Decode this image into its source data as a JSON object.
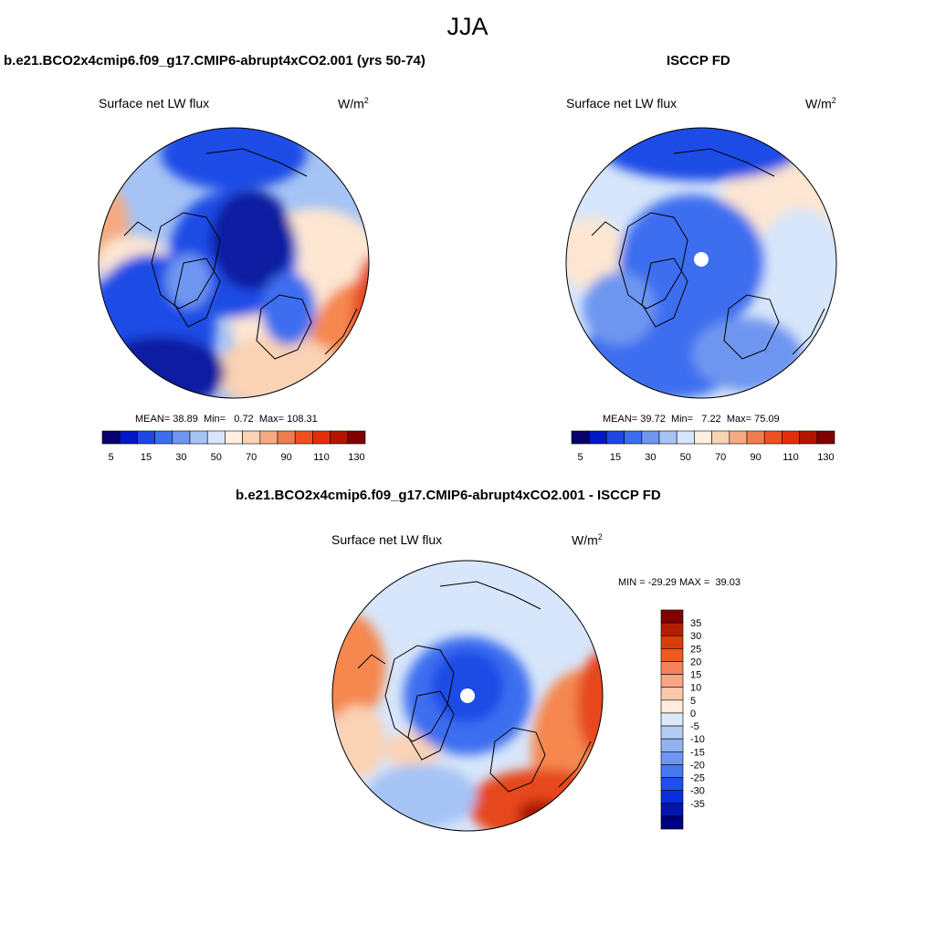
{
  "figure": {
    "season": "JJA"
  },
  "panels": {
    "model": {
      "title": "b.e21.BCO2x4cmip6.f09_g17.CMIP6-abrupt4xCO2.001 (yrs 50-74)",
      "variable": "Surface net LW flux",
      "units": "W/m",
      "units_sup": "2",
      "mean_label": "MEAN=",
      "mean": "38.89",
      "min_label": "Min=",
      "min": "0.72",
      "max_label": "Max=",
      "max": "108.31"
    },
    "obs": {
      "title": "ISCCP FD",
      "variable": "Surface net LW flux",
      "units": "W/m",
      "units_sup": "2",
      "mean_label": "MEAN=",
      "mean": "39.72",
      "min_label": "Min=",
      "min": "7.22",
      "max_label": "Max=",
      "max": "75.09"
    },
    "diff": {
      "title": "b.e21.BCO2x4cmip6.f09_g17.CMIP6-abrupt4xCO2.001 - ISCCP FD",
      "variable": "Surface net LW flux",
      "units": "W/m",
      "units_sup": "2",
      "min_label": "MIN =",
      "min": "-29.29",
      "max_label": "MAX =",
      "max": "39.03"
    }
  },
  "colorbars": {
    "abs": {
      "colors": [
        "#08006e",
        "#0019c8",
        "#1e46e6",
        "#3c6ef0",
        "#6e96f0",
        "#a5c3f5",
        "#d7e6fa",
        "#fff0e1",
        "#fad2b4",
        "#f5aa82",
        "#f07d50",
        "#f0501e",
        "#e62d0a",
        "#b41400",
        "#800000"
      ],
      "tick_labels": [
        "5",
        "15",
        "30",
        "50",
        "70",
        "90",
        "110",
        "130"
      ]
    },
    "diff": {
      "colors": [
        "#800000",
        "#b41e00",
        "#dc3c0a",
        "#f05a1e",
        "#f5825a",
        "#faa582",
        "#fac8aa",
        "#ffebdc",
        "#dceaf8",
        "#b4cdf5",
        "#91b4f0",
        "#6e96f0",
        "#4678f0",
        "#1e50f0",
        "#0a2ddc",
        "#0514aa",
        "#000082"
      ],
      "tick_labels": [
        "35",
        "30",
        "25",
        "20",
        "15",
        "10",
        "5",
        "0",
        "-5",
        "-10",
        "-15",
        "-20",
        "-25",
        "-30",
        "-35"
      ]
    }
  },
  "map_palette": {
    "deep_blue": "#0a1ea0",
    "blue": "#1e4be6",
    "mid_blue": "#3c6ef0",
    "light_blue": "#a5c3f5",
    "pale_blue": "#d7e6fa",
    "pale_orange": "#fde6d2",
    "orange": "#f5874f",
    "red": "#e6461e",
    "dark_red": "#a51400"
  }
}
